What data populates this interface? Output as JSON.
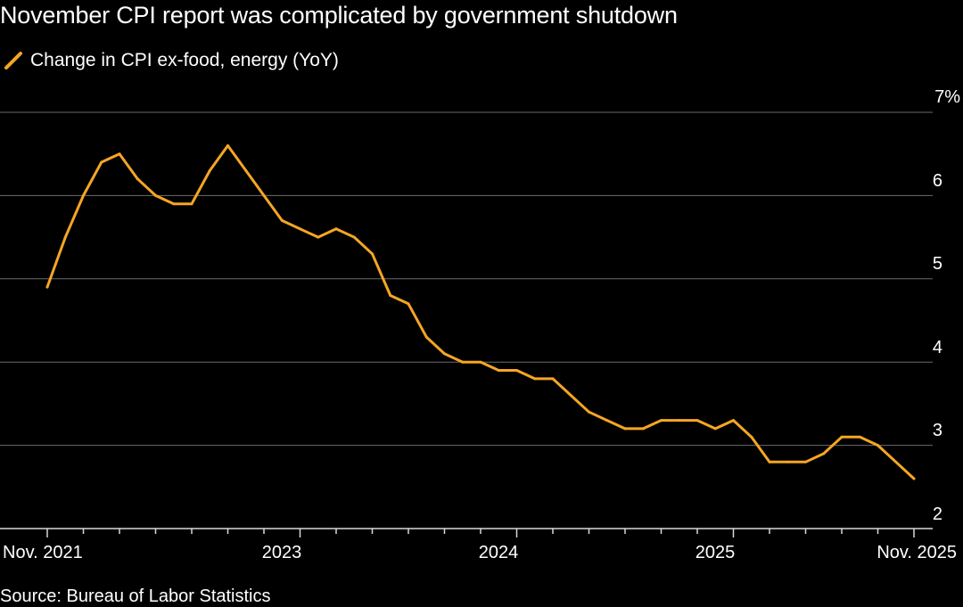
{
  "chart_data": {
    "type": "line",
    "title": "November CPI report was complicated by government shutdown",
    "series": [
      {
        "name": "Change in CPI ex-food, energy (YoY)",
        "color": "#f5a623",
        "x": [
          "2021-11",
          "2021-12",
          "2022-01",
          "2022-02",
          "2022-03",
          "2022-04",
          "2022-05",
          "2022-06",
          "2022-07",
          "2022-08",
          "2022-09",
          "2022-10",
          "2022-11",
          "2022-12",
          "2023-01",
          "2023-02",
          "2023-03",
          "2023-04",
          "2023-05",
          "2023-06",
          "2023-07",
          "2023-08",
          "2023-09",
          "2023-10",
          "2023-11",
          "2023-12",
          "2024-01",
          "2024-02",
          "2024-03",
          "2024-04",
          "2024-05",
          "2024-06",
          "2024-07",
          "2024-08",
          "2024-09",
          "2024-10",
          "2024-11",
          "2024-12",
          "2025-01",
          "2025-02",
          "2025-03",
          "2025-04",
          "2025-05",
          "2025-06",
          "2025-07",
          "2025-08",
          "2025-09",
          "2025-11"
        ],
        "values": [
          4.9,
          5.5,
          6.0,
          6.4,
          6.5,
          6.2,
          6.0,
          5.9,
          5.9,
          6.3,
          6.6,
          6.3,
          6.0,
          5.7,
          5.6,
          5.5,
          5.6,
          5.5,
          5.3,
          4.8,
          4.7,
          4.3,
          4.1,
          4.0,
          4.0,
          3.9,
          3.9,
          3.8,
          3.8,
          3.6,
          3.4,
          3.3,
          3.2,
          3.2,
          3.3,
          3.3,
          3.3,
          3.2,
          3.3,
          3.1,
          2.8,
          2.8,
          2.8,
          2.9,
          3.1,
          3.1,
          3.0,
          2.6
        ]
      }
    ],
    "x_tick_labels": [
      "Nov. 2021",
      "2023",
      "2024",
      "2025",
      "Nov. 2025"
    ],
    "y_tick_labels": [
      "7%",
      "6",
      "5",
      "4",
      "3",
      "2"
    ],
    "ylim": [
      2,
      7
    ],
    "grid": true,
    "source": "Source: Bureau of Labor Statistics"
  }
}
